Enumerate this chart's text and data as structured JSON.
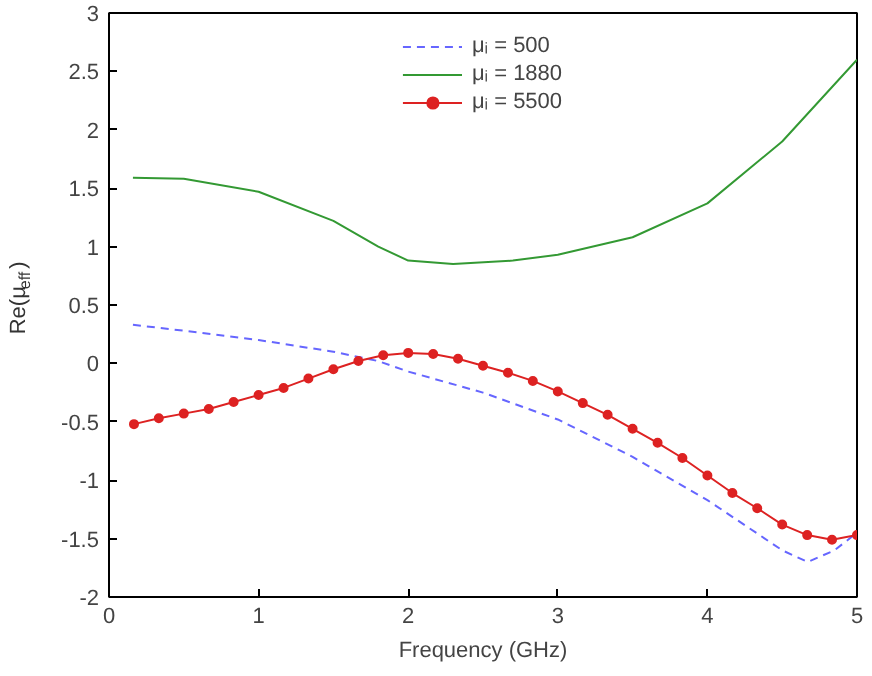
{
  "chart_data": {
    "type": "line",
    "xlabel": "Frequency (GHz)",
    "ylabel": "Re(μ$_{eff}$)",
    "xlim": [
      0,
      5
    ],
    "ylim": [
      -2,
      3
    ],
    "xticks": [
      0,
      1,
      2,
      3,
      4,
      5
    ],
    "yticks": [
      -2,
      -1.5,
      -1,
      -0.5,
      0,
      0.5,
      1,
      1.5,
      2,
      2.5,
      3
    ],
    "grid": false,
    "legend": "top",
    "series": [
      {
        "name": "μᵢ = 500",
        "color": "#6666ff",
        "line_style": "dashed",
        "marker": "none",
        "x": [
          0.16,
          0.5,
          1,
          1.5,
          1.8,
          2,
          2.5,
          3,
          3.5,
          4,
          4.5,
          4.67,
          4.85,
          5
        ],
        "values": [
          0.33,
          0.28,
          0.2,
          0.1,
          0.02,
          -0.07,
          -0.25,
          -0.48,
          -0.8,
          -1.17,
          -1.6,
          -1.7,
          -1.6,
          -1.45
        ]
      },
      {
        "name": "μᵢ = 1880",
        "color": "#339933",
        "line_style": "solid",
        "marker": "none",
        "x": [
          0.16,
          0.5,
          1,
          1.5,
          1.8,
          2,
          2.3,
          2.7,
          3,
          3.5,
          4,
          4.5,
          5
        ],
        "values": [
          1.59,
          1.58,
          1.47,
          1.22,
          1.0,
          0.88,
          0.85,
          0.88,
          0.93,
          1.08,
          1.37,
          1.9,
          2.6
        ]
      },
      {
        "name": "μᵢ = 5500",
        "color": "#dd2222",
        "line_style": "solid",
        "marker": "circle",
        "x": [
          0.167,
          0.333,
          0.5,
          0.667,
          0.833,
          1,
          1.167,
          1.333,
          1.5,
          1.667,
          1.833,
          2,
          2.167,
          2.333,
          2.5,
          2.667,
          2.833,
          3,
          3.167,
          3.333,
          3.5,
          3.667,
          3.833,
          4,
          4.167,
          4.333,
          4.5,
          4.667,
          4.833,
          5
        ],
        "values": [
          -0.52,
          -0.47,
          -0.43,
          -0.39,
          -0.33,
          -0.27,
          -0.21,
          -0.13,
          -0.05,
          0.02,
          0.07,
          0.09,
          0.08,
          0.04,
          -0.02,
          -0.08,
          -0.15,
          -0.24,
          -0.34,
          -0.44,
          -0.56,
          -0.68,
          -0.81,
          -0.96,
          -1.11,
          -1.24,
          -1.38,
          -1.47,
          -1.51,
          -1.47
        ]
      }
    ]
  }
}
